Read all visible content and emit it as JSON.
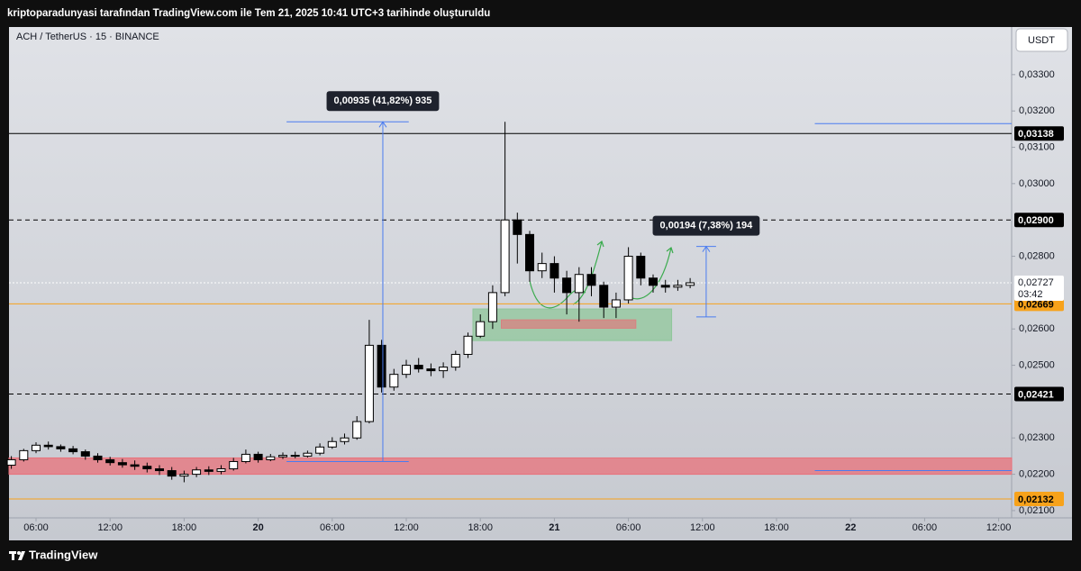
{
  "header": {
    "title": "kriptoparadunyasi tarafından TradingView.com ile Tem 21, 2025 10:41 UTC+3 tarihinde oluşturuldu"
  },
  "chart_data": {
    "type": "candlestick",
    "title": "ACH / TetherUS · 15 · BINANCE",
    "currency": "USDT",
    "x": [
      4,
      5,
      6,
      7,
      8,
      9,
      10,
      11,
      12,
      13,
      14,
      15,
      16,
      17,
      18,
      19,
      20,
      21,
      22,
      23,
      24,
      25,
      26,
      27,
      28,
      29,
      30,
      31,
      32,
      33,
      34,
      35,
      36,
      37,
      38,
      39,
      40,
      41,
      42,
      43,
      44,
      45,
      46,
      47,
      48,
      49,
      50,
      51,
      52,
      53,
      54,
      55,
      56,
      57,
      58,
      59
    ],
    "open": [
      0.02225,
      0.0224,
      0.02265,
      0.0228,
      0.02276,
      0.0227,
      0.02262,
      0.0225,
      0.0224,
      0.02232,
      0.02226,
      0.02222,
      0.02215,
      0.0221,
      0.02195,
      0.022,
      0.02212,
      0.02208,
      0.02215,
      0.02235,
      0.02255,
      0.0224,
      0.02248,
      0.02252,
      0.0225,
      0.02258,
      0.02275,
      0.0229,
      0.023,
      0.02345,
      0.02555,
      0.0244,
      0.02475,
      0.025,
      0.0249,
      0.02485,
      0.02495,
      0.0253,
      0.0258,
      0.0262,
      0.027,
      0.029,
      0.0286,
      0.0276,
      0.0278,
      0.0274,
      0.027,
      0.0275,
      0.0272,
      0.0266,
      0.0268,
      0.028,
      0.0274,
      0.0272,
      0.02715,
      0.0272
    ],
    "high": [
      0.0225,
      0.0227,
      0.02288,
      0.0229,
      0.02282,
      0.02278,
      0.02268,
      0.02258,
      0.02248,
      0.02242,
      0.02238,
      0.02232,
      0.02225,
      0.0222,
      0.0221,
      0.0222,
      0.02222,
      0.02225,
      0.02245,
      0.02268,
      0.02262,
      0.02256,
      0.0226,
      0.02262,
      0.02265,
      0.02285,
      0.02302,
      0.02312,
      0.0236,
      0.02625,
      0.0257,
      0.0249,
      0.02515,
      0.0252,
      0.02505,
      0.02508,
      0.0254,
      0.0259,
      0.0264,
      0.0272,
      0.0317,
      0.0292,
      0.0287,
      0.0281,
      0.028,
      0.0276,
      0.0277,
      0.0277,
      0.0273,
      0.027,
      0.02825,
      0.0281,
      0.0275,
      0.02735,
      0.02735,
      0.0274
    ],
    "low": [
      0.02215,
      0.02235,
      0.02258,
      0.02268,
      0.02262,
      0.02255,
      0.0224,
      0.02232,
      0.02224,
      0.02218,
      0.02212,
      0.02205,
      0.02198,
      0.02185,
      0.02178,
      0.02192,
      0.02198,
      0.022,
      0.0221,
      0.0223,
      0.02232,
      0.02236,
      0.02242,
      0.02244,
      0.02246,
      0.02252,
      0.0227,
      0.02282,
      0.02295,
      0.0234,
      0.02425,
      0.0243,
      0.02465,
      0.0248,
      0.0247,
      0.02465,
      0.02485,
      0.0252,
      0.02575,
      0.026,
      0.0269,
      0.0278,
      0.0273,
      0.0274,
      0.027,
      0.0264,
      0.0262,
      0.0269,
      0.0263,
      0.0263,
      0.0267,
      0.0272,
      0.027,
      0.027,
      0.02705,
      0.02712
    ],
    "close": [
      0.0224,
      0.02265,
      0.0228,
      0.02276,
      0.0227,
      0.02262,
      0.0225,
      0.0224,
      0.02232,
      0.02226,
      0.02222,
      0.02215,
      0.0221,
      0.02195,
      0.022,
      0.02212,
      0.02208,
      0.02215,
      0.02235,
      0.02255,
      0.0224,
      0.02248,
      0.02252,
      0.0225,
      0.02258,
      0.02275,
      0.0229,
      0.023,
      0.02345,
      0.02555,
      0.0244,
      0.02475,
      0.025,
      0.0249,
      0.02485,
      0.02495,
      0.0253,
      0.0258,
      0.0262,
      0.027,
      0.029,
      0.0286,
      0.0276,
      0.0278,
      0.0274,
      0.027,
      0.0275,
      0.0272,
      0.0266,
      0.0268,
      0.028,
      0.0274,
      0.0272,
      0.02715,
      0.0272,
      0.02727
    ],
    "up_color": "#ffffff",
    "down_color": "#000000",
    "xlim": [
      3.81,
      85.05
    ],
    "xticks": [
      {
        "value": 6,
        "label": "06:00"
      },
      {
        "value": 12,
        "label": "12:00"
      },
      {
        "value": 18,
        "label": "18:00"
      },
      {
        "value": 24,
        "label": "20"
      },
      {
        "value": 30,
        "label": "06:00"
      },
      {
        "value": 36,
        "label": "12:00"
      },
      {
        "value": 42,
        "label": "18:00"
      },
      {
        "value": 48,
        "label": "21"
      },
      {
        "value": 54,
        "label": "06:00"
      },
      {
        "value": 60,
        "label": "12:00"
      },
      {
        "value": 66,
        "label": "18:00"
      },
      {
        "value": 72,
        "label": "22"
      },
      {
        "value": 78,
        "label": "06:00"
      },
      {
        "value": 84,
        "label": "12:00"
      }
    ],
    "ylim": [
      0.0208,
      0.03431
    ],
    "yticks": [
      {
        "value": 0.021,
        "label": "0,02100"
      },
      {
        "value": 0.022,
        "label": "0,02200"
      },
      {
        "value": 0.023,
        "label": "0,02300"
      },
      {
        "value": 0.025,
        "label": "0,02500"
      },
      {
        "value": 0.026,
        "label": "0,02600"
      },
      {
        "value": 0.028,
        "label": "0,02800"
      },
      {
        "value": 0.03,
        "label": "0,03000"
      },
      {
        "value": 0.031,
        "label": "0,03100"
      },
      {
        "value": 0.032,
        "label": "0,03200"
      },
      {
        "value": 0.033,
        "label": "0,03300"
      }
    ],
    "price_lines": [
      {
        "value": 0.03138,
        "label": "0,03138",
        "color": "#000000",
        "style": "solid",
        "text_color": "#ffffff"
      },
      {
        "value": 0.029,
        "label": "0,02900",
        "color": "#000000",
        "style": "dashed",
        "text_color": "#ffffff"
      },
      {
        "value": 0.02669,
        "label": "0,02669",
        "color": "#f7a21b",
        "style": "solid",
        "text_color": "#000000"
      },
      {
        "value": 0.02421,
        "label": "0,02421",
        "color": "#000000",
        "style": "dashed",
        "text_color": "#ffffff"
      },
      {
        "value": 0.02132,
        "label": "0,02132",
        "color": "#f7a21b",
        "style": "solid",
        "text_color": "#000000"
      }
    ],
    "current_price": {
      "value": 0.02727,
      "label": "0,02727",
      "countdown": "03:42"
    },
    "zones": [
      {
        "from": 3.81,
        "to": 85.05,
        "top": 0.02245,
        "bottom": 0.022,
        "color": "#e8707a"
      },
      {
        "from": 41.4,
        "to": 57.5,
        "top": 0.02655,
        "bottom": 0.02568,
        "color": "#8fc79a"
      },
      {
        "from": 43.7,
        "to": 54.6,
        "top": 0.02625,
        "bottom": 0.02602,
        "color": "#d98080"
      }
    ],
    "trend_lines": [
      {
        "from": 69.1,
        "to": 85.05,
        "value": 0.03165,
        "color": "#4a7cf0"
      },
      {
        "from": 69.1,
        "to": 85.05,
        "value": 0.0221,
        "color": "#4a7cf0"
      }
    ],
    "measurements": [
      {
        "x": 34.1,
        "from": 0.02235,
        "to": 0.0317,
        "start": 26.3,
        "end": 36.2,
        "label": "0,00935 (41,82%) 935"
      },
      {
        "x": 60.3,
        "from": 0.02633,
        "to": 0.02827,
        "start": 59.5,
        "end": 61.1,
        "label": "0,00194 (7,38%) 194"
      }
    ],
    "footer": "TradingView"
  }
}
